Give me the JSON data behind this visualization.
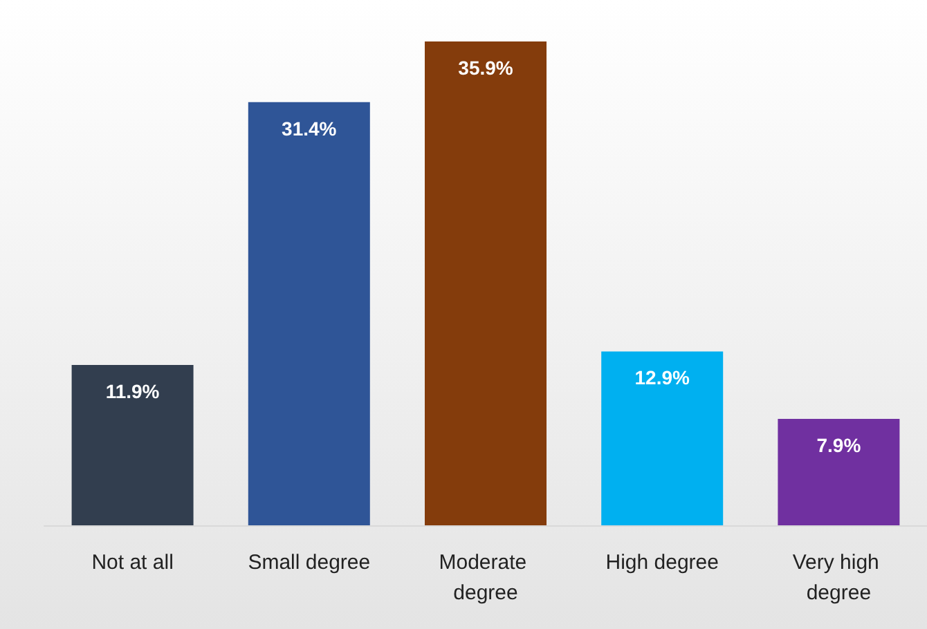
{
  "chart_data": {
    "type": "bar",
    "categories": [
      "Not at all",
      "Small degree",
      "Moderate degree",
      "High degree",
      "Very high degree"
    ],
    "values": [
      11.9,
      31.4,
      35.9,
      12.9,
      7.9
    ],
    "colors": [
      "#323e4f",
      "#2f5597",
      "#843c0c",
      "#00b0f0",
      "#7030a0"
    ],
    "value_labels": [
      "11.9%",
      "31.4%",
      "35.9%",
      "12.9%",
      "7.9%"
    ]
  }
}
